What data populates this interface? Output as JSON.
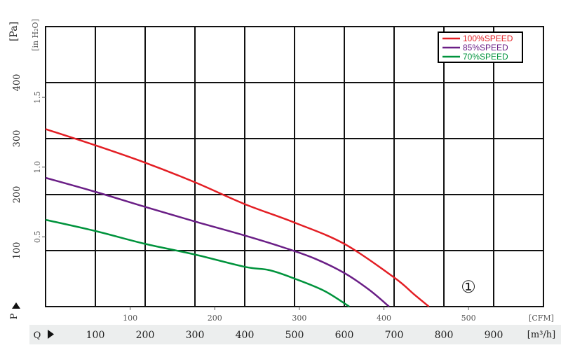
{
  "chart_data": {
    "type": "line",
    "title": "",
    "y_axis": {
      "pa_label": "[Pa]",
      "inh2o_label": "[in H₂O]",
      "pa_ticks": [
        100,
        200,
        300,
        400
      ],
      "inh2o_ticks": [
        "0.5",
        "1.0",
        "1.5"
      ],
      "pa_range": [
        0,
        500
      ],
      "p_label": "P"
    },
    "x_axis": {
      "q_label": "Q",
      "cfm_unit": "[CFM]",
      "m3h_unit": "[m³/h]",
      "cfm_ticks": [
        100,
        200,
        300,
        400,
        500
      ],
      "m3h_ticks": [
        100,
        200,
        300,
        400,
        500,
        600,
        700,
        800,
        900
      ],
      "m3h_range": [
        0,
        1000
      ]
    },
    "grid": true,
    "legend_position": "top-right",
    "curve_marker": "①",
    "series": [
      {
        "name": "100%SPEED",
        "color": "#e31e24",
        "points": [
          [
            0,
            317
          ],
          [
            100,
            288
          ],
          [
            200,
            257
          ],
          [
            300,
            222
          ],
          [
            400,
            183
          ],
          [
            500,
            150
          ],
          [
            600,
            112
          ],
          [
            700,
            52
          ],
          [
            740,
            22
          ],
          [
            770,
            0
          ]
        ]
      },
      {
        "name": "85%SPEED",
        "color": "#6a1e86",
        "points": [
          [
            0,
            230
          ],
          [
            100,
            205
          ],
          [
            200,
            178
          ],
          [
            300,
            152
          ],
          [
            400,
            127
          ],
          [
            480,
            105
          ],
          [
            540,
            86
          ],
          [
            600,
            60
          ],
          [
            650,
            30
          ],
          [
            690,
            0
          ]
        ]
      },
      {
        "name": "70%SPEED",
        "color": "#00933c",
        "points": [
          [
            0,
            155
          ],
          [
            100,
            135
          ],
          [
            200,
            112
          ],
          [
            300,
            93
          ],
          [
            400,
            71
          ],
          [
            450,
            65
          ],
          [
            500,
            50
          ],
          [
            560,
            28
          ],
          [
            610,
            0
          ]
        ]
      }
    ]
  }
}
